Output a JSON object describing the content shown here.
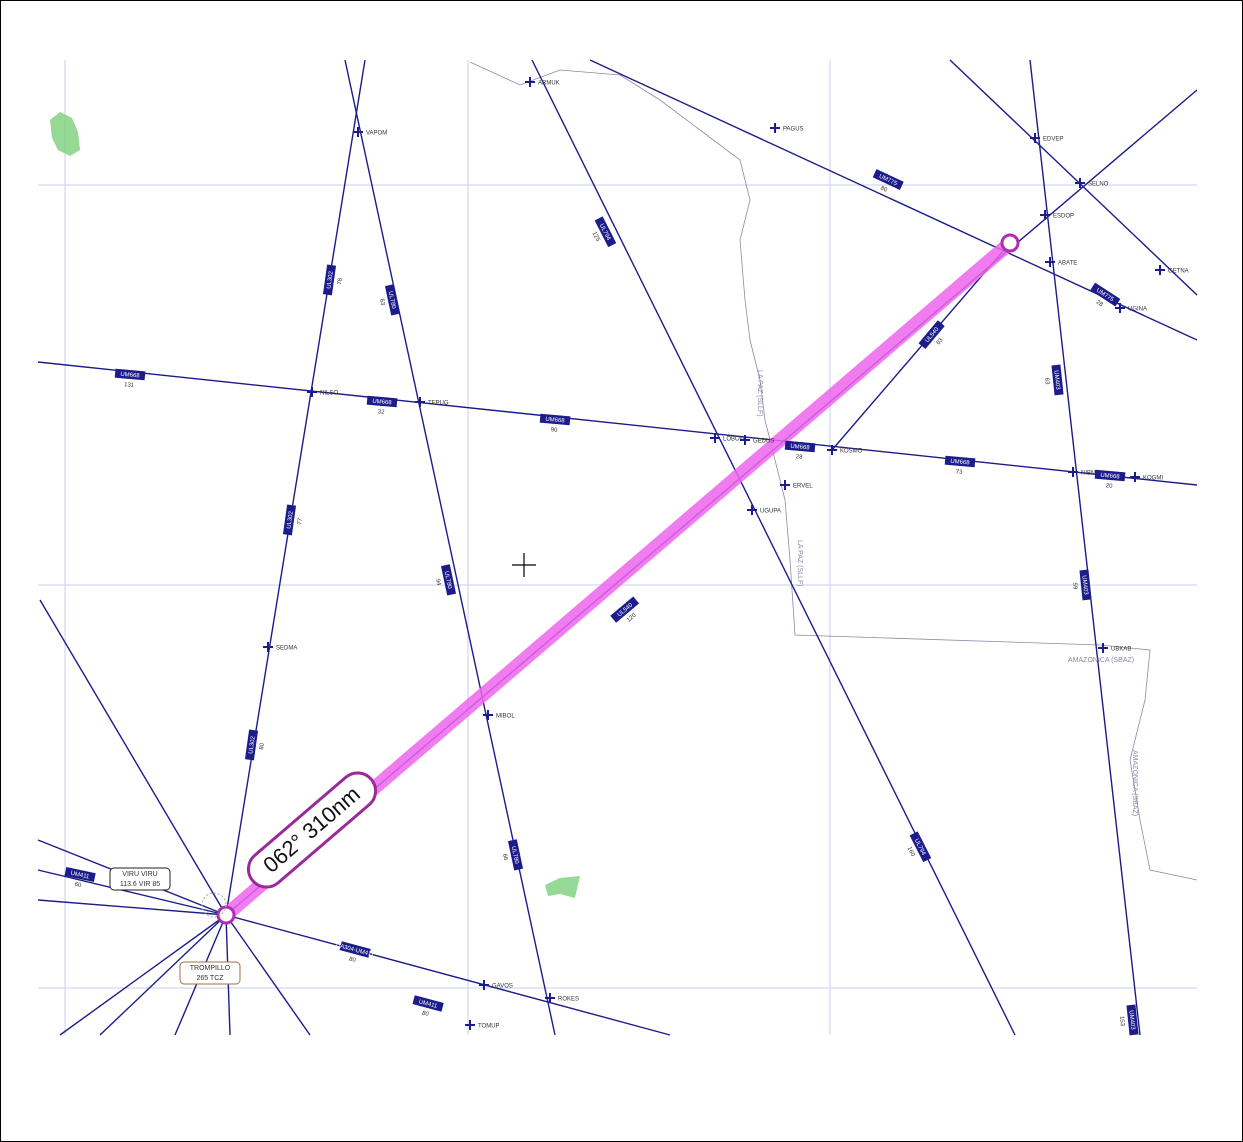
{
  "measurement": "062° 310nm",
  "waypoints": [
    "ARMUK",
    "VAPOM",
    "PAGUS",
    "EDVEP",
    "SELNO",
    "ESDOP",
    "ABATE",
    "GETNA",
    "UGINA",
    "NILSO",
    "TEPUG",
    "LOBON",
    "GEDUS",
    "KOSMO",
    "ERVEL",
    "UGUPA",
    "NIBMI",
    "KOGMI",
    "SEDMA",
    "UBKAB",
    "MIBOL",
    "GAVOS",
    "ROKES",
    "TOMUP"
  ],
  "airways": [
    {
      "name": "UM668",
      "distance": "131"
    },
    {
      "name": "UM668",
      "distance": "32"
    },
    {
      "name": "UM668",
      "distance": "90"
    },
    {
      "name": "UM668",
      "distance": "28"
    },
    {
      "name": "UM668",
      "distance": "73"
    },
    {
      "name": "UM668",
      "distance": "20"
    },
    {
      "name": "UL302",
      "distance": "78"
    },
    {
      "name": "UL302",
      "distance": "77"
    },
    {
      "name": "UL302",
      "distance": "80"
    },
    {
      "name": "UL780",
      "distance": "63"
    },
    {
      "name": "UL780",
      "distance": "94"
    },
    {
      "name": "UL780",
      "distance": "66"
    },
    {
      "name": "UM775",
      "distance": "80"
    },
    {
      "name": "UM775",
      "distance": "28"
    },
    {
      "name": "UL540",
      "distance": "120"
    },
    {
      "name": "UL540",
      "distance": "63"
    },
    {
      "name": "UM403",
      "distance": "63"
    },
    {
      "name": "UM403",
      "distance": "59"
    },
    {
      "name": "UM403",
      "distance": "153"
    },
    {
      "name": "UL794",
      "distance": "125"
    },
    {
      "name": "UL794",
      "distance": "160"
    },
    {
      "name": "UA304-UM411",
      "distance": "80"
    },
    {
      "name": "UM411",
      "distance": "80"
    },
    {
      "name": "UM411",
      "distance": "60"
    }
  ],
  "navaids": [
    {
      "name": "VIRU VIRU",
      "detail": "113.6 VIR 85"
    },
    {
      "name": "TROMPILLO",
      "detail": "265 TCZ"
    }
  ],
  "boundaries": [
    "LA PAZ (SLLF)",
    "AMAZONICA (SBAZ)",
    "LA PAZ (SLLF)",
    "AMAZONICA (SBAZ)"
  ]
}
